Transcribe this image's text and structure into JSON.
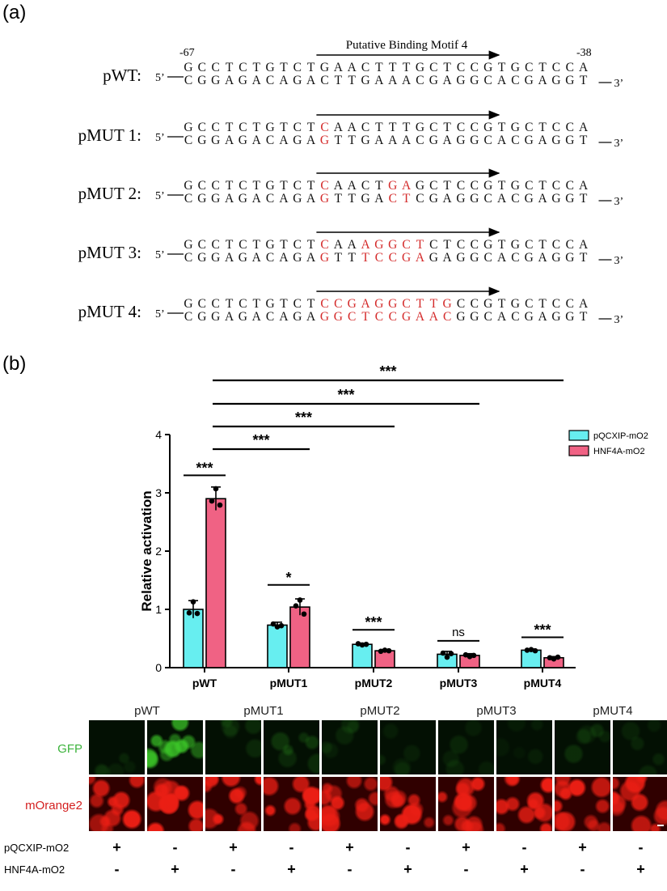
{
  "panel_a": {
    "label": "(a)",
    "motif_title": "Putative Binding Motif 4",
    "pos_left": "-67",
    "pos_right": "-38",
    "prime5": "5’",
    "prime3": "3’",
    "constructs": [
      {
        "name": "pWT:",
        "top": "GCCTCTGTCTGAACTTTGCTCCGTGCTCCA",
        "bottom": "CGGAGACAGACTTGAAACGAGGCACGAGGT",
        "mut": []
      },
      {
        "name": "pMUT 1:",
        "top": "GCCTCTGTCTCAACTTTGCTCCGTGCTCCA",
        "bottom": "CGGAGACAGAGTTGAAACGAGGCACGAGGT",
        "mut": [
          10
        ]
      },
      {
        "name": "pMUT 2:",
        "top": "GCCTCTGTCTCAACTGAGCTCCGTGCTCCA",
        "bottom": "CGGAGACAGAGTTGACTCGAGGCACGAGGT",
        "mut": [
          10,
          15,
          16
        ]
      },
      {
        "name": "pMUT 3:",
        "top": "GCCTCTGTCTCAAAGGCTCTCCGTGCTCCA",
        "bottom": "CGGAGACAGAGTTTCCGAGAGGCACGAGGT",
        "mut": [
          10,
          13,
          14,
          15,
          16,
          17
        ]
      },
      {
        "name": "pMUT 4:",
        "top": "GCCTCTGTCTCCGAGGCTTGCCGTGCTCCA",
        "bottom": "CGGAGACAGAGGCTCCGAACGGCACGAGGT",
        "mut": [
          10,
          11,
          12,
          13,
          14,
          15,
          16,
          17,
          18,
          19
        ]
      }
    ],
    "mutation_color": "#d42a2a"
  },
  "panel_b_label": "(b)",
  "chart_data": {
    "type": "bar",
    "ylabel": "Relative activation",
    "ylim": [
      0,
      4
    ],
    "yticks": [
      "0",
      "1",
      "2",
      "3",
      "4"
    ],
    "categories": [
      "pWT",
      "pMUT1",
      "pMUT2",
      "pMUT3",
      "pMUT4"
    ],
    "series": [
      {
        "name": "pQCXIP-mO2",
        "color": "#67eef0",
        "values": [
          1.0,
          0.73,
          0.4,
          0.23,
          0.3
        ],
        "err": [
          0.15,
          0.05,
          0.02,
          0.05,
          0.02
        ],
        "points": [
          [
            1.13,
            0.94,
            0.93
          ],
          [
            0.7,
            0.75,
            0.72
          ],
          [
            0.39,
            0.41,
            0.4
          ],
          [
            0.18,
            0.25,
            0.24
          ],
          [
            0.31,
            0.3,
            0.29
          ]
        ]
      },
      {
        "name": "HNF4A-mO2",
        "color": "#f06284",
        "values": [
          2.9,
          1.04,
          0.29,
          0.21,
          0.17
        ],
        "err": [
          0.2,
          0.14,
          0.02,
          0.03,
          0.02
        ],
        "points": [
          [
            3.07,
            2.86,
            2.79
          ],
          [
            1.16,
            1.06,
            0.92
          ],
          [
            0.3,
            0.28,
            0.29
          ],
          [
            0.19,
            0.22,
            0.21
          ],
          [
            0.15,
            0.17,
            0.18
          ]
        ]
      }
    ],
    "within_sig": [
      "***",
      "*",
      "***",
      "ns",
      "***"
    ],
    "vs_wt_sig": [
      {
        "to": "pMUT1",
        "label": "***"
      },
      {
        "to": "pMUT2",
        "label": "***"
      },
      {
        "to": "pMUT3",
        "label": "***"
      },
      {
        "to": "pMUT4",
        "label": "***"
      }
    ],
    "legend_position": "top-right"
  },
  "microscopy": {
    "columns": [
      "pWT",
      "pMUT1",
      "pMUT2",
      "pMUT3",
      "pMUT4"
    ],
    "rows": [
      {
        "label": "GFP",
        "color": "#3cb33c"
      },
      {
        "label": "mOrange2",
        "color": "#d42020"
      }
    ],
    "gfp_intensity": [
      0.12,
      0.85,
      0.15,
      0.22,
      0.12,
      0.12,
      0.12,
      0.08,
      0.15,
      0.12
    ],
    "plasmids": [
      {
        "label": "pQCXIP-mO2",
        "signs": [
          "+",
          "-",
          "+",
          "-",
          "+",
          "-",
          "+",
          "-",
          "+",
          "-"
        ]
      },
      {
        "label": "HNF4A-mO2",
        "signs": [
          "-",
          "+",
          "-",
          "+",
          "-",
          "+",
          "-",
          "+",
          "-",
          "+"
        ]
      }
    ]
  }
}
